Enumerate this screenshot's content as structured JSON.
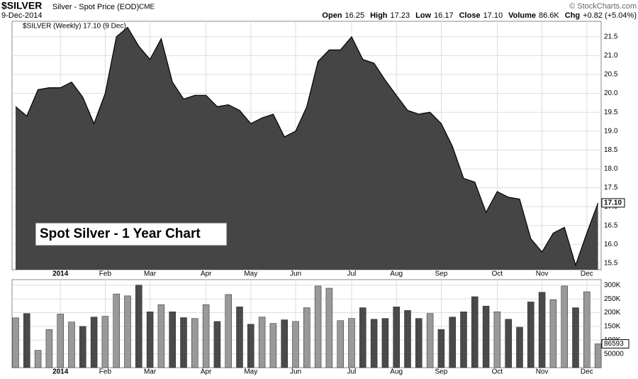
{
  "chart_data": {
    "type": "area",
    "symbol": "$SILVER",
    "title": "Silver - Spot Price (EOD)",
    "exchange": "CME",
    "date": "9-Dec-2014",
    "stats": [
      {
        "label": "Open",
        "value": "16.25"
      },
      {
        "label": "High",
        "value": "17.23"
      },
      {
        "label": "Low",
        "value": "16.17"
      },
      {
        "label": "Close",
        "value": "17.10"
      },
      {
        "label": "Volume",
        "value": "86.6K"
      },
      {
        "label": "Chg",
        "value": "+0.82 (+5.04%)"
      }
    ],
    "credit": "© StockCharts.com",
    "legend": "$SILVER (Weekly) 17.10 (9 Dec)",
    "annotation": "Spot Silver - 1 Year Chart",
    "months": [
      "2014",
      "Feb",
      "Mar",
      "Apr",
      "May",
      "Jun",
      "Jul",
      "Aug",
      "Sep",
      "Oct",
      "Nov",
      "Dec"
    ],
    "series": [
      {
        "name": "$SILVER",
        "color": "#454545",
        "values": [
          19.65,
          19.4,
          20.1,
          20.15,
          20.15,
          20.3,
          19.9,
          19.2,
          20.0,
          21.5,
          21.75,
          21.25,
          20.9,
          21.45,
          20.3,
          19.85,
          19.95,
          19.95,
          19.65,
          19.7,
          19.55,
          19.2,
          19.35,
          19.45,
          18.85,
          19.0,
          19.65,
          20.85,
          21.15,
          21.15,
          21.5,
          20.9,
          20.8,
          20.35,
          19.95,
          19.55,
          19.45,
          19.5,
          19.2,
          18.6,
          17.75,
          17.65,
          16.85,
          17.4,
          17.25,
          17.2,
          16.15,
          15.8,
          16.3,
          16.45,
          15.45,
          16.3,
          17.1
        ]
      }
    ],
    "last_label": "17.10",
    "ylim": [
      15.33,
      21.91
    ],
    "yticks": [
      15.5,
      {
        "value": 16,
        "label": "16.0"
      },
      16.5,
      {
        "value": 17,
        "label": "17.0"
      },
      17.5,
      {
        "value": 18,
        "label": "18.0"
      },
      18.5,
      {
        "value": 19,
        "label": "19.0"
      },
      19.5,
      {
        "value": 20,
        "label": "20.0"
      },
      20.5,
      {
        "value": 21,
        "label": "21.0"
      },
      21.5
    ],
    "volume": {
      "values": [
        181000,
        197000,
        63000,
        139000,
        195000,
        166000,
        150000,
        184000,
        187000,
        268000,
        261000,
        300000,
        203000,
        229000,
        203000,
        182000,
        179000,
        229000,
        168000,
        266000,
        221000,
        158000,
        184000,
        161000,
        174000,
        168000,
        218000,
        297000,
        289000,
        171000,
        179000,
        218000,
        176000,
        179000,
        221000,
        208000,
        179000,
        197000,
        139000,
        184000,
        203000,
        258000,
        224000,
        203000,
        176000,
        147000,
        239000,
        274000,
        247000,
        297000,
        218000,
        276000,
        86593
      ],
      "up_color": "#999999",
      "down_color": "#4a4a4a",
      "last_label": "86593",
      "ylim": [
        0,
        320000
      ],
      "yticks": [
        50000,
        {
          "value": 100000,
          "label": "100K"
        },
        {
          "value": 150000,
          "label": "150K"
        },
        {
          "value": 200000,
          "label": "200K"
        },
        {
          "value": 250000,
          "label": "250K"
        },
        {
          "value": 300000,
          "label": "300K"
        }
      ]
    },
    "grid": true
  }
}
